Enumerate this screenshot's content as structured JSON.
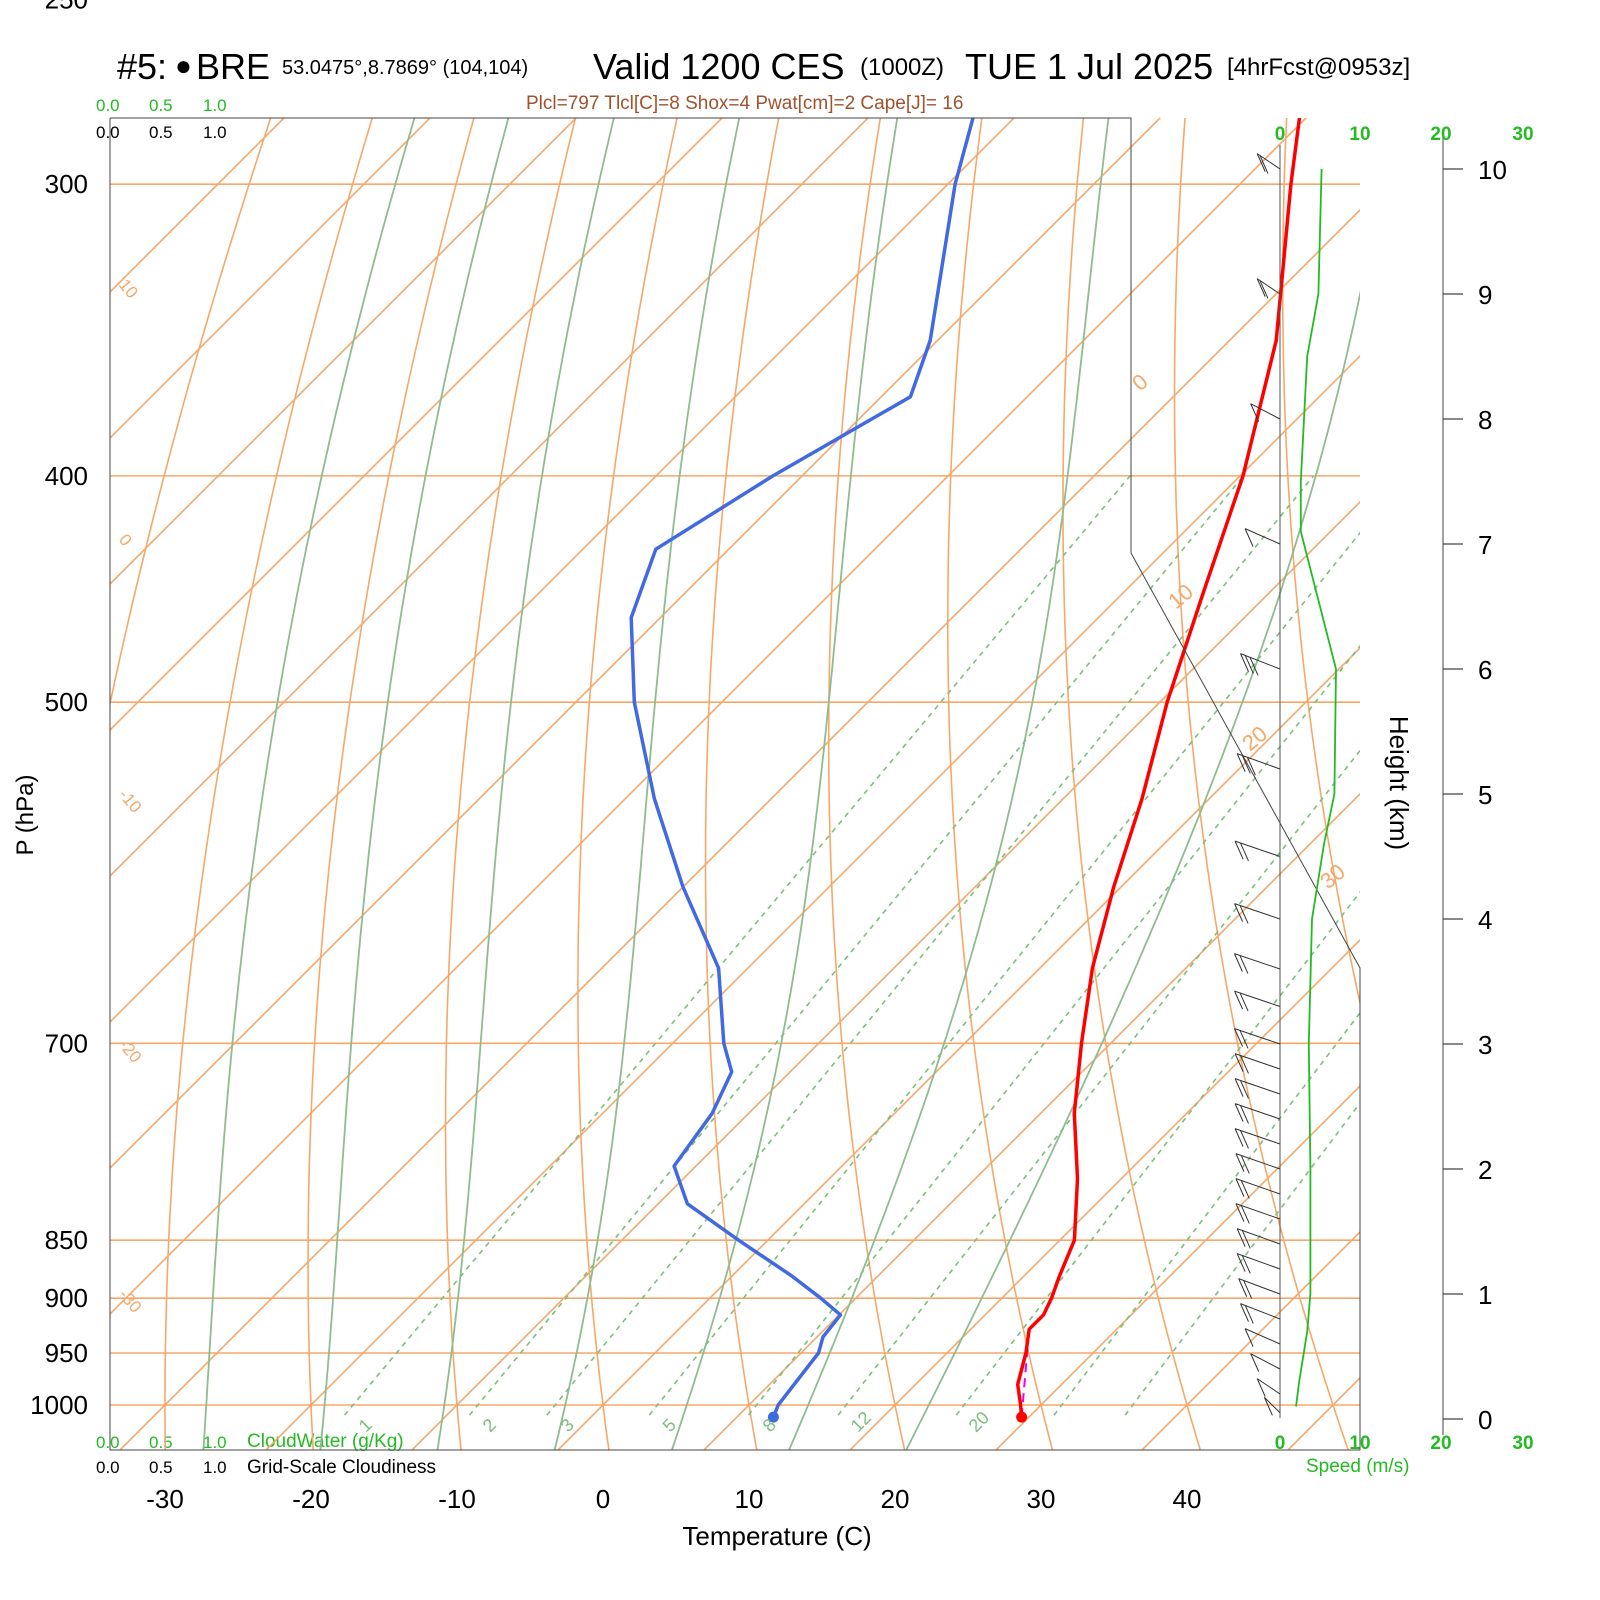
{
  "header": {
    "station_id": "#5:",
    "station_dot": "●",
    "station_name": "BRE",
    "coords": "53.0475°,8.7869° (104,104)",
    "valid": "Valid 1200 CES",
    "zulu": "(1000Z)",
    "date": "TUE 1 Jul 2025",
    "forecast": "[4hrFcst@0953z]",
    "stats": "Plcl=797 Tlcl[C]=8 Shox=4 Pwat[cm]=2 Cape[J]= 16"
  },
  "scales": {
    "top_green": [
      "0.0",
      "0.5",
      "1.0"
    ],
    "top_black": [
      "0.0",
      "0.5",
      "1.0"
    ],
    "bottom_green": [
      "0.0",
      "0.5",
      "1.0"
    ],
    "bottom_green_label": "CloudWater (g/Kg)",
    "bottom_black": [
      "0.0",
      "0.5",
      "1.0"
    ],
    "bottom_black_label": "Grid-Scale Cloudiness",
    "wind_speed_ticks": [
      "0",
      "10",
      "20",
      "30"
    ],
    "wind_speed_label": "Speed (m/s)"
  },
  "colors": {
    "temperature": "#ff0000",
    "dewpoint": "#4169e1",
    "isotherm": "#f5a86a",
    "dry_adiabat": "#f5a86a",
    "moist_adiabat": "#8fbc8f",
    "mixing_ratio": "#7cbf7c",
    "wind_speed": "#22bb22",
    "parcel": "#ee00ee",
    "stats_text": "#a0522d"
  },
  "chart_data": {
    "type": "skew-t",
    "xlabel": "Temperature (C)",
    "ylabel": "P (hPa)",
    "y2label": "Height (km)",
    "x_ticks": [
      -30,
      -20,
      -10,
      0,
      10,
      20,
      30,
      40
    ],
    "p_ticks": [
      250,
      300,
      400,
      500,
      700,
      850,
      900,
      950,
      1000
    ],
    "height_ticks": [
      0,
      1,
      2,
      3,
      4,
      5,
      6,
      7,
      8,
      9,
      10
    ],
    "isotherm_labels": [
      "10",
      "0",
      "-10",
      "-20",
      "-30"
    ],
    "dry_adiabat_labels": [
      "0",
      "10",
      "20",
      "30"
    ],
    "mixing_ratio_labels": [
      "1",
      "2",
      "3",
      "5",
      "8",
      "12",
      "20"
    ],
    "temperature_profile": [
      {
        "p": 1012,
        "t": 29.5
      },
      {
        "p": 1000,
        "t": 28.6
      },
      {
        "p": 980,
        "t": 27.0
      },
      {
        "p": 950,
        "t": 25.4
      },
      {
        "p": 928,
        "t": 24.0
      },
      {
        "p": 915,
        "t": 24.0
      },
      {
        "p": 900,
        "t": 23.4
      },
      {
        "p": 880,
        "t": 22.4
      },
      {
        "p": 850,
        "t": 21.0
      },
      {
        "p": 800,
        "t": 17.0
      },
      {
        "p": 750,
        "t": 12.3
      },
      {
        "p": 700,
        "t": 8.0
      },
      {
        "p": 650,
        "t": 3.6
      },
      {
        "p": 600,
        "t": -0.5
      },
      {
        "p": 550,
        "t": -4.6
      },
      {
        "p": 500,
        "t": -9.5
      },
      {
        "p": 450,
        "t": -14.4
      },
      {
        "p": 400,
        "t": -19.8
      },
      {
        "p": 350,
        "t": -26.8
      },
      {
        "p": 300,
        "t": -36.5
      },
      {
        "p": 265,
        "t": -44.0
      }
    ],
    "dewpoint_profile": [
      {
        "p": 1012,
        "t": 12.5
      },
      {
        "p": 1000,
        "t": 12.0
      },
      {
        "p": 950,
        "t": 11.2
      },
      {
        "p": 935,
        "t": 10.4
      },
      {
        "p": 915,
        "t": 10.1
      },
      {
        "p": 900,
        "t": 7.6
      },
      {
        "p": 880,
        "t": 4.0
      },
      {
        "p": 850,
        "t": -2.0
      },
      {
        "p": 820,
        "t": -8.0
      },
      {
        "p": 790,
        "t": -11.5
      },
      {
        "p": 750,
        "t": -12.5
      },
      {
        "p": 720,
        "t": -14.0
      },
      {
        "p": 700,
        "t": -16.5
      },
      {
        "p": 650,
        "t": -22.0
      },
      {
        "p": 600,
        "t": -30.0
      },
      {
        "p": 550,
        "t": -38.0
      },
      {
        "p": 500,
        "t": -46.0
      },
      {
        "p": 460,
        "t": -52.0
      },
      {
        "p": 430,
        "t": -55.0
      },
      {
        "p": 400,
        "t": -52.0
      },
      {
        "p": 370,
        "t": -48.0
      },
      {
        "p": 350,
        "t": -50.5
      },
      {
        "p": 300,
        "t": -59.5
      },
      {
        "p": 280,
        "t": -63.0
      },
      {
        "p": 265,
        "t": -63.5
      }
    ],
    "parcel_segment": [
      {
        "p": 1012,
        "t": 29.5
      },
      {
        "p": 928,
        "t": 24.0
      }
    ],
    "wind_speed_profile": [
      {
        "h": 0.1,
        "v": 2
      },
      {
        "h": 0.3,
        "v": 2.4
      },
      {
        "h": 0.7,
        "v": 3.4
      },
      {
        "h": 1.0,
        "v": 3.8
      },
      {
        "h": 2.0,
        "v": 3.8
      },
      {
        "h": 3.0,
        "v": 3.6
      },
      {
        "h": 4.0,
        "v": 4.0
      },
      {
        "h": 4.6,
        "v": 5.5
      },
      {
        "h": 5.0,
        "v": 6.8
      },
      {
        "h": 6.0,
        "v": 7.0
      },
      {
        "h": 7.1,
        "v": 2.6
      },
      {
        "h": 7.5,
        "v": 2.6
      },
      {
        "h": 8.0,
        "v": 3.0
      },
      {
        "h": 8.5,
        "v": 3.4
      },
      {
        "h": 9.0,
        "v": 4.8
      },
      {
        "h": 10.0,
        "v": 5.2
      }
    ],
    "wind_barbs": [
      {
        "h": 0.05,
        "dir": 200,
        "spd": 2
      },
      {
        "h": 0.2,
        "dir": 210,
        "spd": 2
      },
      {
        "h": 0.4,
        "dir": 220,
        "spd": 3
      },
      {
        "h": 0.6,
        "dir": 230,
        "spd": 3
      },
      {
        "h": 0.8,
        "dir": 240,
        "spd": 4
      },
      {
        "h": 1.0,
        "dir": 245,
        "spd": 4
      },
      {
        "h": 1.2,
        "dir": 250,
        "spd": 4
      },
      {
        "h": 1.4,
        "dir": 250,
        "spd": 4
      },
      {
        "h": 1.6,
        "dir": 255,
        "spd": 4
      },
      {
        "h": 1.8,
        "dir": 255,
        "spd": 4
      },
      {
        "h": 2.0,
        "dir": 255,
        "spd": 4
      },
      {
        "h": 2.2,
        "dir": 260,
        "spd": 4
      },
      {
        "h": 2.4,
        "dir": 260,
        "spd": 4
      },
      {
        "h": 2.6,
        "dir": 260,
        "spd": 4
      },
      {
        "h": 2.8,
        "dir": 260,
        "spd": 4
      },
      {
        "h": 3.0,
        "dir": 265,
        "spd": 4
      },
      {
        "h": 3.3,
        "dir": 265,
        "spd": 4
      },
      {
        "h": 3.6,
        "dir": 270,
        "spd": 4
      },
      {
        "h": 4.0,
        "dir": 275,
        "spd": 4
      },
      {
        "h": 4.5,
        "dir": 280,
        "spd": 5
      },
      {
        "h": 5.2,
        "dir": 290,
        "spd": 7
      },
      {
        "h": 6.0,
        "dir": 300,
        "spd": 7
      },
      {
        "h": 7.0,
        "dir": 310,
        "spd": 3
      },
      {
        "h": 8.0,
        "dir": 320,
        "spd": 3
      },
      {
        "h": 9.0,
        "dir": 330,
        "spd": 5
      },
      {
        "h": 10.0,
        "dir": 330,
        "spd": 5
      }
    ]
  }
}
